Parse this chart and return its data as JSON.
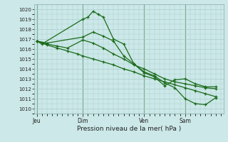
{
  "bg_color": "#cce8e8",
  "grid_color": "#aacccc",
  "line_color": "#1a6b1a",
  "ylim": [
    1009.5,
    1020.5
  ],
  "yticks": [
    1010,
    1011,
    1012,
    1013,
    1014,
    1015,
    1016,
    1017,
    1018,
    1019,
    1020
  ],
  "xlabel": "Pression niveau de la mer( hPa )",
  "day_labels": [
    "Jeu",
    "Dim",
    "Ven",
    "Sam"
  ],
  "day_positions": [
    0,
    9,
    21,
    29
  ],
  "xlim": [
    -0.5,
    36.5
  ],
  "line1_x": [
    0,
    1,
    9,
    10,
    11,
    12,
    13,
    15,
    17,
    19,
    21,
    23,
    25,
    27,
    29,
    31,
    33,
    35
  ],
  "line1_y": [
    1016.8,
    1016.5,
    1019.0,
    1019.2,
    1019.8,
    1019.5,
    1019.2,
    1017.0,
    1016.5,
    1014.5,
    1013.6,
    1013.2,
    1012.3,
    1012.9,
    1013.0,
    1012.5,
    1012.2,
    1012.2
  ],
  "line2_x": [
    0,
    2,
    9,
    11,
    13,
    15,
    17,
    19,
    21,
    23,
    25,
    27,
    29,
    31,
    33,
    35
  ],
  "line2_y": [
    1016.8,
    1016.6,
    1017.2,
    1017.7,
    1017.3,
    1016.8,
    1015.3,
    1014.5,
    1013.7,
    1013.3,
    1012.6,
    1012.1,
    1011.0,
    1010.5,
    1010.4,
    1011.1
  ],
  "line3_x": [
    0,
    2,
    4,
    6,
    9,
    11,
    13,
    15,
    17,
    19,
    21,
    23,
    25,
    27,
    29,
    31,
    33,
    35
  ],
  "line3_y": [
    1016.8,
    1016.5,
    1016.3,
    1016.1,
    1016.9,
    1016.6,
    1016.1,
    1015.5,
    1015.0,
    1014.4,
    1014.0,
    1013.5,
    1013.0,
    1012.7,
    1012.5,
    1012.3,
    1012.1,
    1012.0
  ],
  "line4_x": [
    0,
    2,
    4,
    6,
    8,
    9,
    11,
    13,
    15,
    17,
    19,
    21,
    23,
    25,
    27,
    29,
    31,
    33,
    35
  ],
  "line4_y": [
    1016.8,
    1016.4,
    1016.1,
    1015.8,
    1015.5,
    1015.3,
    1015.0,
    1014.7,
    1014.4,
    1014.0,
    1013.7,
    1013.3,
    1013.0,
    1012.7,
    1012.4,
    1012.1,
    1011.8,
    1011.5,
    1011.2
  ]
}
